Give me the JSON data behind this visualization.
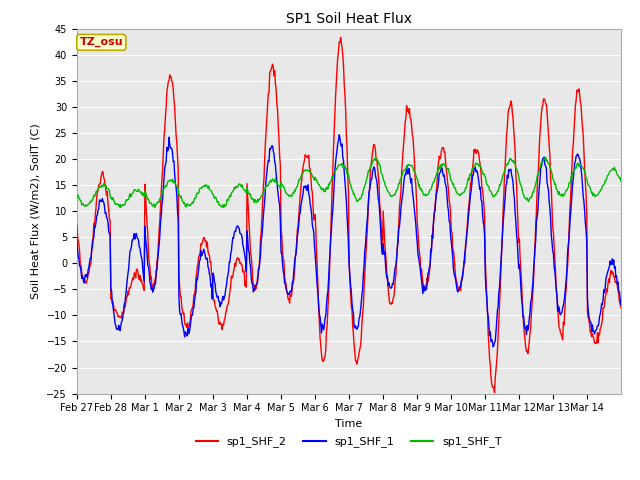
{
  "title": "SP1 Soil Heat Flux",
  "xlabel": "Time",
  "ylabel": "Soil Heat Flux (W/m2), SoilT (C)",
  "ylim": [
    -25,
    45
  ],
  "yticks": [
    -25,
    -20,
    -15,
    -10,
    -5,
    0,
    5,
    10,
    15,
    20,
    25,
    30,
    35,
    40,
    45
  ],
  "colors": {
    "sp1_SHF_2": "#ff0000",
    "sp1_SHF_1": "#0000ff",
    "sp1_SHF_T": "#00bb00"
  },
  "legend_labels": [
    "sp1_SHF_2",
    "sp1_SHF_1",
    "sp1_SHF_T"
  ],
  "annotation": "TZ_osu",
  "annotation_color": "#cc0000",
  "annotation_bg": "#ffffcc",
  "annotation_border": "#bbaa00",
  "plot_bg": "#e8e8e8",
  "fig_bg": "#ffffff",
  "x_tick_labels": [
    "Feb 27",
    "Feb 28",
    "Mar 1",
    "Mar 2",
    "Mar 3",
    "Mar 4",
    "Mar 5",
    "Mar 6",
    "Mar 7",
    "Mar 8",
    "Mar 9",
    "Mar 10",
    "Mar 11",
    "Mar 12",
    "Mar 13",
    "Mar 14"
  ],
  "n_days": 16,
  "title_fontsize": 10,
  "label_fontsize": 8,
  "tick_fontsize": 7,
  "legend_fontsize": 8,
  "annot_fontsize": 8,
  "linewidth": 1.0,
  "grid_color": "#ffffff",
  "grid_lw": 0.8
}
